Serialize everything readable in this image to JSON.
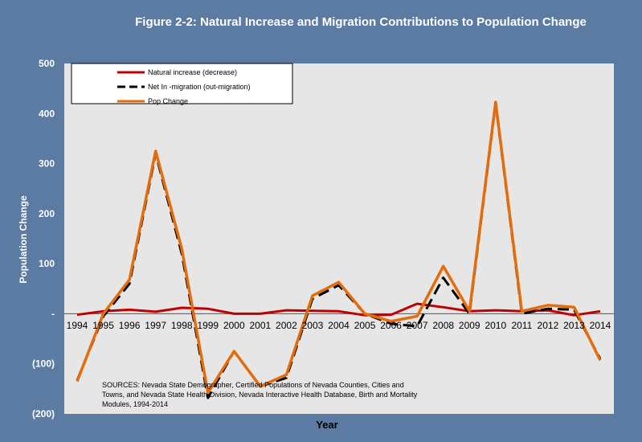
{
  "chart_data": {
    "type": "line",
    "title": "Figure 2-2: Natural Increase and Migration Contributions to Population Change",
    "xlabel": "Year",
    "ylabel": "Population Change",
    "categories": [
      "1994",
      "1995",
      "1996",
      "1997",
      "1998",
      "1999",
      "2000",
      "2001",
      "2002",
      "2003",
      "2004",
      "2005",
      "2006",
      "2007",
      "2008",
      "2009",
      "2010",
      "2011",
      "2012",
      "2013",
      "2014"
    ],
    "ylim": [
      -200,
      500
    ],
    "yticks": [
      {
        "value": 500,
        "label": "500"
      },
      {
        "value": 400,
        "label": "400"
      },
      {
        "value": 300,
        "label": "300"
      },
      {
        "value": 200,
        "label": "200"
      },
      {
        "value": 100,
        "label": "100"
      },
      {
        "value": 0,
        "label": "-"
      },
      {
        "value": -100,
        "label": "(100)"
      },
      {
        "value": -200,
        "label": "(200)"
      }
    ],
    "grid": false,
    "legend_position": "top-left",
    "series": [
      {
        "name": "Natural increase (decrease)",
        "color": "#c00000",
        "dash": "solid",
        "values": [
          -2,
          5,
          8,
          4,
          12,
          10,
          0,
          0,
          7,
          6,
          5,
          -3,
          -2,
          20,
          13,
          5,
          7,
          5,
          7,
          -3,
          5
        ]
      },
      {
        "name": "Net In -migration (out-migration)",
        "color": "#000000",
        "dash": "dashed",
        "values": [
          -133,
          -5,
          60,
          320,
          120,
          -168,
          -75,
          -145,
          -128,
          30,
          57,
          0,
          -20,
          -25,
          72,
          0,
          420,
          0,
          10,
          8,
          -90
        ]
      },
      {
        "name": "Pop Change",
        "color": "#e46c0a",
        "dash": "solid",
        "values": [
          -135,
          0,
          68,
          325,
          130,
          -158,
          -75,
          -145,
          -122,
          36,
          63,
          0,
          -15,
          -5,
          95,
          5,
          423,
          5,
          17,
          13,
          -93
        ]
      }
    ],
    "source_lines": [
      "SOURCES: Nevada State Demographer, Certified Populations of Nevada Counties, Cities and",
      "Towns, and Nevada State Health Division, Nevada Interactive Health Database, Birth and Mortality",
      "Modules, 1994-2014"
    ]
  },
  "colors": {
    "frame": "#5b7ba3",
    "plot_area": "#e6e6e6",
    "legend_bg": "#ffffff"
  }
}
